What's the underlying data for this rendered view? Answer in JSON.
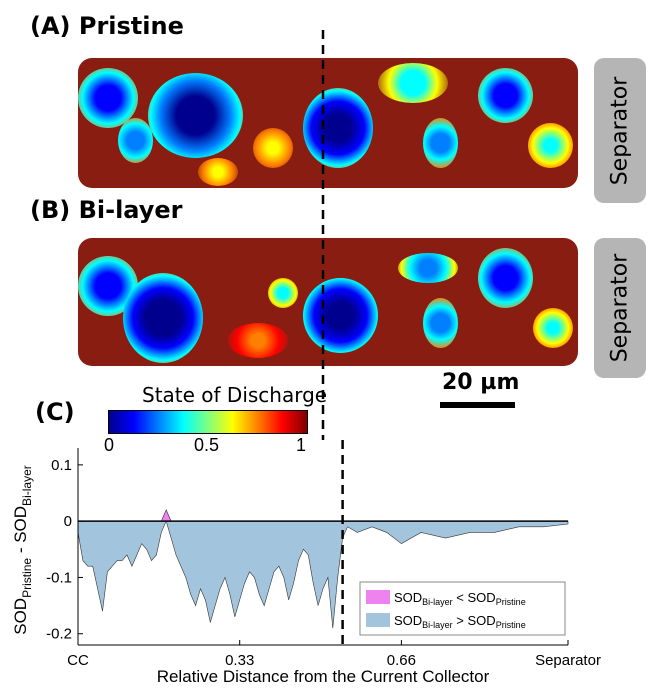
{
  "panels": {
    "a_title": "(A) Pristine",
    "b_title": "(B) Bi-layer",
    "c_title": "(C)",
    "separator_label": "Separator",
    "scale_bar_label": "20 µm"
  },
  "colorbar": {
    "title": "State of Discharge",
    "ticks": [
      "0",
      "0.5",
      "1"
    ],
    "colormap": [
      "#00008f",
      "#0000ff",
      "#007fff",
      "#00ffff",
      "#7fff7f",
      "#ffff00",
      "#ff7f00",
      "#ff0000",
      "#7f0000"
    ]
  },
  "chart_data": {
    "type": "area",
    "xlabel": "Relative Distance from the Current Collector",
    "ylabel_main_1": "SOD",
    "ylabel_sub_1": "Pristine",
    "ylabel_main_2": " - SOD",
    "ylabel_sub_2": "Bi-layer",
    "xlim": [
      0,
      1
    ],
    "ylim": [
      -0.22,
      0.13
    ],
    "xticks": [
      0,
      0.33,
      0.66,
      1
    ],
    "xtick_labels": [
      "CC",
      "0.33",
      "0.66",
      "Separator"
    ],
    "yticks": [
      0.1,
      0,
      -0.1,
      -0.2
    ],
    "ytick_labels": [
      "0.1",
      "0",
      "-0.1",
      "-0.2"
    ],
    "zero_line": 0,
    "divider_x": 0.54,
    "legend": {
      "position": "bottom-right",
      "entries": [
        {
          "main": "SOD",
          "sub1": "Bi-layer",
          "op": " < SOD",
          "sub2": "Pristine",
          "color": "#ee82ee"
        },
        {
          "main": "SOD",
          "sub1": "Bi-layer",
          "op": " > SOD",
          "sub2": "Pristine",
          "color": "#a2c4dc"
        }
      ]
    },
    "series": [
      {
        "x": [
          0,
          0.01,
          0.02,
          0.03,
          0.04,
          0.05,
          0.06,
          0.07,
          0.08,
          0.09,
          0.1,
          0.11,
          0.12,
          0.13,
          0.14,
          0.15,
          0.16,
          0.17,
          0.18,
          0.19,
          0.2,
          0.21,
          0.22,
          0.23,
          0.24,
          0.25,
          0.26,
          0.27,
          0.28,
          0.29,
          0.3,
          0.31,
          0.32,
          0.33,
          0.34,
          0.35,
          0.36,
          0.37,
          0.38,
          0.39,
          0.4,
          0.41,
          0.42,
          0.43,
          0.44,
          0.45,
          0.46,
          0.47,
          0.48,
          0.49,
          0.5,
          0.51,
          0.52,
          0.53,
          0.54,
          0.55,
          0.57,
          0.6,
          0.63,
          0.66,
          0.7,
          0.75,
          0.8,
          0.85,
          0.9,
          0.95,
          1.0
        ],
        "y": [
          -0.02,
          -0.07,
          -0.08,
          -0.08,
          -0.12,
          -0.16,
          -0.09,
          -0.08,
          -0.07,
          -0.07,
          -0.06,
          -0.08,
          -0.06,
          -0.04,
          -0.05,
          -0.07,
          -0.06,
          -0.02,
          0.02,
          -0.03,
          -0.06,
          -0.08,
          -0.1,
          -0.13,
          -0.15,
          -0.12,
          -0.14,
          -0.18,
          -0.15,
          -0.12,
          -0.1,
          -0.13,
          -0.17,
          -0.14,
          -0.11,
          -0.09,
          -0.1,
          -0.13,
          -0.15,
          -0.12,
          -0.09,
          -0.08,
          -0.1,
          -0.14,
          -0.11,
          -0.07,
          -0.05,
          -0.06,
          -0.11,
          -0.15,
          -0.12,
          -0.1,
          -0.19,
          -0.1,
          -0.03,
          -0.01,
          -0.02,
          -0.01,
          -0.02,
          -0.04,
          -0.02,
          -0.03,
          -0.02,
          -0.02,
          -0.01,
          -0.01,
          -0.005
        ]
      }
    ]
  }
}
